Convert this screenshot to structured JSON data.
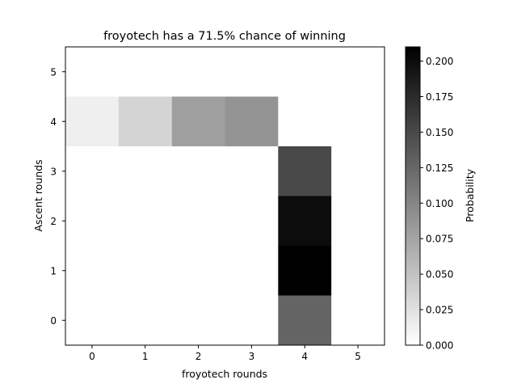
{
  "chart_data": {
    "type": "heatmap",
    "title": "froyotech has a 71.5% chance of winning",
    "xlabel": "froyotech rounds",
    "ylabel": "Ascent rounds",
    "x_categories": [
      "0",
      "1",
      "2",
      "3",
      "4",
      "5"
    ],
    "y_categories": [
      "0",
      "1",
      "2",
      "3",
      "4",
      "5"
    ],
    "cells": [
      {
        "x": 0,
        "y": 4,
        "value": 0.013
      },
      {
        "x": 1,
        "y": 4,
        "value": 0.035
      },
      {
        "x": 2,
        "y": 4,
        "value": 0.079
      },
      {
        "x": 3,
        "y": 4,
        "value": 0.088
      },
      {
        "x": 4,
        "y": 3,
        "value": 0.15
      },
      {
        "x": 4,
        "y": 2,
        "value": 0.2
      },
      {
        "x": 4,
        "y": 1,
        "value": 0.21
      },
      {
        "x": 4,
        "y": 0,
        "value": 0.128
      }
    ],
    "colorbar": {
      "label": "Probability",
      "range": [
        0,
        0.21
      ],
      "ticks": [
        "0.000",
        "0.025",
        "0.050",
        "0.075",
        "0.100",
        "0.125",
        "0.150",
        "0.175",
        "0.200"
      ],
      "colormap": "Greys",
      "low_color": "#ffffff",
      "high_color": "#000000"
    },
    "grid": false
  }
}
